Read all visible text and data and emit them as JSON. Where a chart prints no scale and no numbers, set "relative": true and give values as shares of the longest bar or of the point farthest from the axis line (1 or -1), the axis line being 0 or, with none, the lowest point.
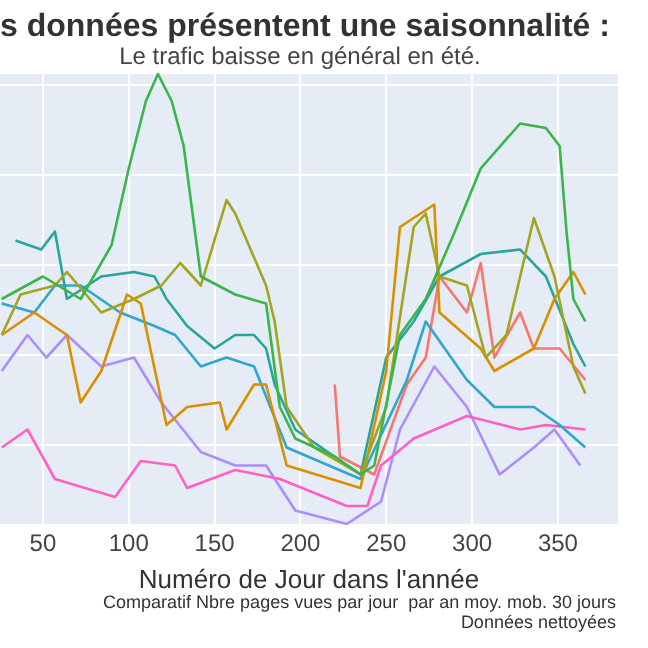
{
  "chart_data": {
    "type": "line",
    "title": "s données présentent une saisonnalité :",
    "subtitle": "Le trafic baisse en général en été.",
    "xlabel": "Numéro de Jour dans l'année",
    "annotations": [
      "Comparatif Nbre pages vues par jour  par an moy. mob. 30 jours",
      "Données nettoyées"
    ],
    "relative": true,
    "xlim": [
      25,
      385
    ],
    "xticks": [
      50,
      100,
      150,
      200,
      250,
      300,
      350
    ],
    "grid": true,
    "legend": false,
    "marker": "none",
    "series": [
      {
        "color": "#39b54a",
        "x": [
          26,
          50,
          72,
          90,
          100,
          110,
          117,
          125,
          132,
          142,
          162,
          180,
          188,
          197,
          220,
          235,
          243,
          258,
          273,
          290,
          305,
          328,
          343,
          351,
          355,
          359,
          366
        ],
        "values": [
          0.5,
          0.55,
          0.5,
          0.62,
          0.79,
          0.94,
          1,
          0.94,
          0.84,
          0.55,
          0.51,
          0.49,
          0.26,
          0.19,
          0.15,
          0.11,
          0.13,
          0.42,
          0.5,
          0.65,
          0.79,
          0.89,
          0.88,
          0.84,
          0.65,
          0.5,
          0.45
        ]
      },
      {
        "color": "#a3a520",
        "x": [
          26,
          37,
          57,
          64,
          84,
          103,
          119,
          130,
          142,
          157,
          162,
          180,
          185,
          192,
          208,
          235,
          250,
          266,
          273,
          281,
          297,
          308,
          320,
          336,
          348,
          359,
          366
        ],
        "values": [
          0.42,
          0.51,
          0.53,
          0.56,
          0.47,
          0.5,
          0.53,
          0.58,
          0.53,
          0.72,
          0.69,
          0.53,
          0.45,
          0.26,
          0.17,
          0.11,
          0.26,
          0.66,
          0.69,
          0.55,
          0.53,
          0.37,
          0.42,
          0.68,
          0.55,
          0.35,
          0.29
        ]
      },
      {
        "color": "#d89000",
        "x": [
          26,
          45,
          64,
          72,
          84,
          99,
          107,
          122,
          134,
          153,
          157,
          173,
          180,
          192,
          235,
          250,
          258,
          278,
          281,
          305,
          313,
          336,
          348,
          359,
          366
        ],
        "values": [
          0.42,
          0.47,
          0.42,
          0.27,
          0.34,
          0.51,
          0.49,
          0.22,
          0.26,
          0.27,
          0.21,
          0.31,
          0.31,
          0.13,
          0.08,
          0.34,
          0.66,
          0.71,
          0.47,
          0.39,
          0.34,
          0.39,
          0.5,
          0.56,
          0.51
        ]
      },
      {
        "color": "#26a69a",
        "x": [
          34,
          49,
          57,
          64,
          84,
          103,
          115,
          122,
          134,
          150,
          162,
          173,
          180,
          185,
          197,
          235,
          250,
          266,
          281,
          305,
          328,
          343,
          359,
          366
        ],
        "values": [
          0.63,
          0.61,
          0.65,
          0.5,
          0.55,
          0.56,
          0.55,
          0.5,
          0.44,
          0.39,
          0.42,
          0.42,
          0.39,
          0.31,
          0.21,
          0.11,
          0.37,
          0.45,
          0.55,
          0.6,
          0.61,
          0.55,
          0.4,
          0.35
        ]
      },
      {
        "color": "#2fa6d0",
        "x": [
          26,
          45,
          57,
          72,
          95,
          115,
          127,
          142,
          157,
          173,
          192,
          235,
          262,
          273,
          297,
          313,
          336,
          351,
          366
        ],
        "values": [
          0.49,
          0.47,
          0.53,
          0.53,
          0.47,
          0.44,
          0.42,
          0.35,
          0.37,
          0.35,
          0.17,
          0.1,
          0.32,
          0.45,
          0.32,
          0.26,
          0.26,
          0.22,
          0.17
        ]
      },
      {
        "color": "#f8766d",
        "x": [
          220,
          223,
          243,
          262,
          273,
          281,
          297,
          305,
          313,
          328,
          336,
          351,
          366
        ],
        "values": [
          0.31,
          0.15,
          0.11,
          0.31,
          0.37,
          0.55,
          0.47,
          0.58,
          0.37,
          0.47,
          0.39,
          0.39,
          0.32
        ]
      },
      {
        "color": "#ff61c3",
        "x": [
          26,
          41,
          57,
          92,
          107,
          127,
          134,
          162,
          188,
          227,
          239,
          247,
          266,
          297,
          328,
          343,
          366
        ],
        "values": [
          0.17,
          0.21,
          0.1,
          0.06,
          0.14,
          0.13,
          0.08,
          0.12,
          0.1,
          0.04,
          0.04,
          0.13,
          0.19,
          0.24,
          0.21,
          0.22,
          0.21
        ]
      },
      {
        "color": "#ad8cff",
        "x": [
          26,
          41,
          52,
          64,
          84,
          103,
          119,
          142,
          162,
          180,
          197,
          227,
          247,
          258,
          278,
          297,
          316,
          336,
          348,
          363
        ],
        "values": [
          0.34,
          0.42,
          0.37,
          0.42,
          0.35,
          0.37,
          0.27,
          0.16,
          0.13,
          0.13,
          0.03,
          0,
          0.05,
          0.21,
          0.35,
          0.26,
          0.11,
          0.17,
          0.21,
          0.13
        ]
      }
    ]
  }
}
